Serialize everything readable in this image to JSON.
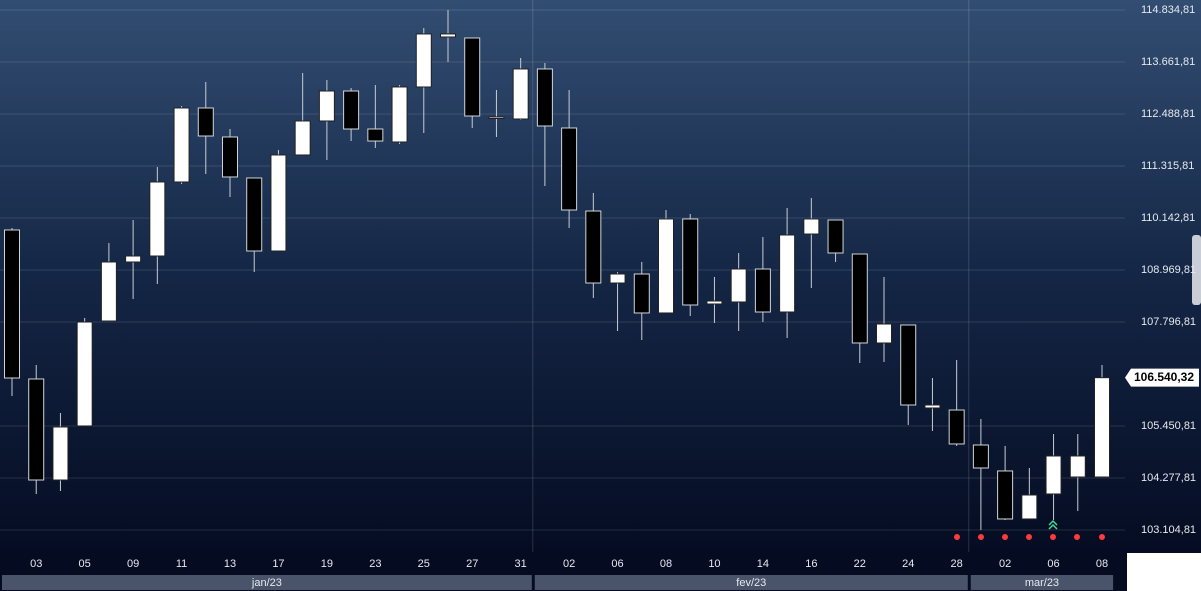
{
  "chart_data": {
    "type": "candlestick",
    "categories": [
      null,
      "03",
      null,
      "05",
      null,
      "09",
      null,
      "11",
      null,
      "13",
      null,
      "17",
      null,
      "19",
      null,
      "23",
      null,
      "25",
      null,
      "27",
      null,
      "31",
      null,
      "02",
      null,
      "06",
      null,
      "08",
      null,
      "10",
      null,
      "14",
      null,
      "16",
      null,
      "22",
      null,
      "24",
      null,
      "28",
      null,
      "02",
      null,
      "06",
      null,
      "08"
    ],
    "months": [
      "jan/23",
      "fev/23",
      "mar/23"
    ],
    "open": [
      109872,
      106511,
      104232,
      105451,
      107819,
      109150,
      109285,
      110955,
      112624,
      111970,
      111045,
      109398,
      111564,
      112331,
      113007,
      112150,
      111857,
      113098,
      114226,
      114203,
      112398,
      112376,
      113504,
      112173,
      110300,
      108676,
      108879,
      108000,
      110120,
      108203,
      108248,
      108992,
      108022,
      109781,
      110097,
      109330,
      107323,
      107729,
      105857,
      105811,
      105022,
      104436,
      103353,
      103917,
      104300,
      104300
    ],
    "high": [
      109917,
      106826,
      105744,
      107887,
      109578,
      110097,
      111293,
      112669,
      113210,
      112150,
      111045,
      111677,
      113414,
      113255,
      113075,
      113143,
      113143,
      114429,
      114835,
      114203,
      113030,
      113752,
      113639,
      113030,
      110707,
      108924,
      109150,
      110323,
      110233,
      108812,
      109353,
      109714,
      110368,
      110594,
      110097,
      109330,
      108812,
      107729,
      106533,
      106939,
      105609,
      105000,
      104503,
      105270,
      105270,
      106826
    ],
    "low": [
      106127,
      103917,
      103984,
      105451,
      107819,
      108315,
      108654,
      110910,
      111135,
      110617,
      108924,
      109398,
      111564,
      111451,
      111879,
      111722,
      111812,
      112060,
      113662,
      112173,
      111970,
      112353,
      110864,
      109917,
      108338,
      107593,
      107390,
      108000,
      107932,
      107774,
      107593,
      107796,
      107436,
      108563,
      109150,
      106871,
      106894,
      105474,
      105338,
      105000,
      103105,
      103330,
      103353,
      103330,
      103533,
      104300
    ],
    "close": [
      106533,
      104232,
      105428,
      107796,
      109150,
      109285,
      110955,
      112624,
      111992,
      111068,
      109398,
      111564,
      112331,
      113007,
      112150,
      111879,
      113098,
      114294,
      114294,
      112443,
      112421,
      113504,
      112218,
      110323,
      108676,
      108879,
      108000,
      110120,
      108180,
      108270,
      108992,
      108022,
      109759,
      110120,
      109353,
      107323,
      107751,
      105924,
      105924,
      105045,
      104503,
      103353,
      103894,
      104774,
      104774,
      106540.32
    ],
    "up_color": "#ffffff",
    "down_color": "#000000",
    "ylim": [
      102608,
      115060
    ],
    "yticks": [
      {
        "value": 114834.81,
        "label": "114.834,81"
      },
      {
        "value": 113661.81,
        "label": "113.661,81"
      },
      {
        "value": 112488.81,
        "label": "112.488,81"
      },
      {
        "value": 111315.81,
        "label": "111.315,81"
      },
      {
        "value": 110142.81,
        "label": "110.142,81"
      },
      {
        "value": 108969.81,
        "label": "108.969,81"
      },
      {
        "value": 107796.81,
        "label": "107.796,81"
      },
      {
        "value": 105450.81,
        "label": "105.450,81"
      },
      {
        "value": 104277.81,
        "label": "104.277,81"
      },
      {
        "value": 103104.81,
        "label": "103.104,81"
      }
    ],
    "last_price": {
      "value": 106540.32,
      "label": "106.540,32"
    },
    "grid": true
  }
}
